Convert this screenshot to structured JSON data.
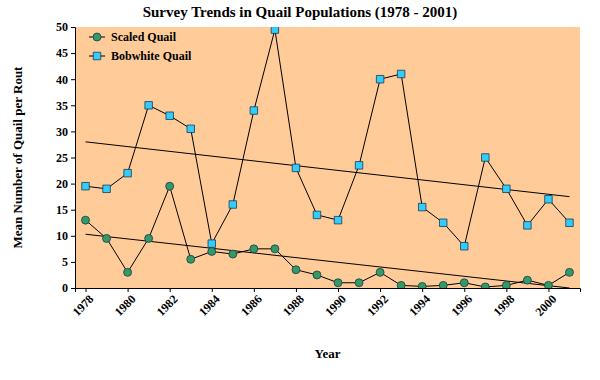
{
  "chart_data": {
    "type": "line",
    "title": "Survey Trends in Quail Populations (1978 - 2001)",
    "x_label": "Year",
    "y_label": "Mean Number of Quail per Rout",
    "x": [
      1978,
      1979,
      1980,
      1981,
      1982,
      1983,
      1984,
      1985,
      1986,
      1987,
      1988,
      1989,
      1990,
      1991,
      1992,
      1993,
      1994,
      1995,
      1996,
      1997,
      1998,
      1999,
      2000,
      2001
    ],
    "xlim": [
      1977.5,
      2001.5
    ],
    "xticks": [
      1978,
      1980,
      1982,
      1984,
      1986,
      1988,
      1990,
      1992,
      1994,
      1996,
      1998,
      2000
    ],
    "ylim": [
      0,
      50
    ],
    "yticks": [
      0,
      5,
      10,
      15,
      20,
      25,
      30,
      35,
      40,
      45,
      50
    ],
    "grid": false,
    "legend": "top-left",
    "series": [
      {
        "name": "Scaled Quail",
        "color": "#339966",
        "marker": "circle",
        "line_style": "solid",
        "values": [
          13,
          9.5,
          3,
          9.5,
          19.5,
          5.5,
          7,
          6.5,
          7.5,
          7.5,
          3.5,
          2.5,
          1,
          1,
          3,
          0.5,
          0.3,
          0.5,
          1,
          0.2,
          0.5,
          1.5,
          0.5,
          3
        ]
      },
      {
        "name": "Bobwhite Quail",
        "color": "#33ccff",
        "marker": "square",
        "line_style": "solid",
        "values": [
          19.5,
          19,
          22,
          35,
          33,
          30.5,
          8.5,
          16,
          34,
          49.5,
          23,
          14,
          13,
          23.5,
          40,
          41,
          15.5,
          12.5,
          8,
          25,
          19,
          12,
          17,
          12.5
        ]
      },
      {
        "x": [
          1978,
          2001
        ],
        "values": [
          10.3,
          0
        ],
        "color": "#000000",
        "marker": "none",
        "line_style": "solid"
      },
      {
        "x": [
          1978,
          2001
        ],
        "values": [
          28,
          17.5
        ],
        "color": "#000000",
        "marker": "none",
        "line_style": "solid"
      }
    ]
  }
}
